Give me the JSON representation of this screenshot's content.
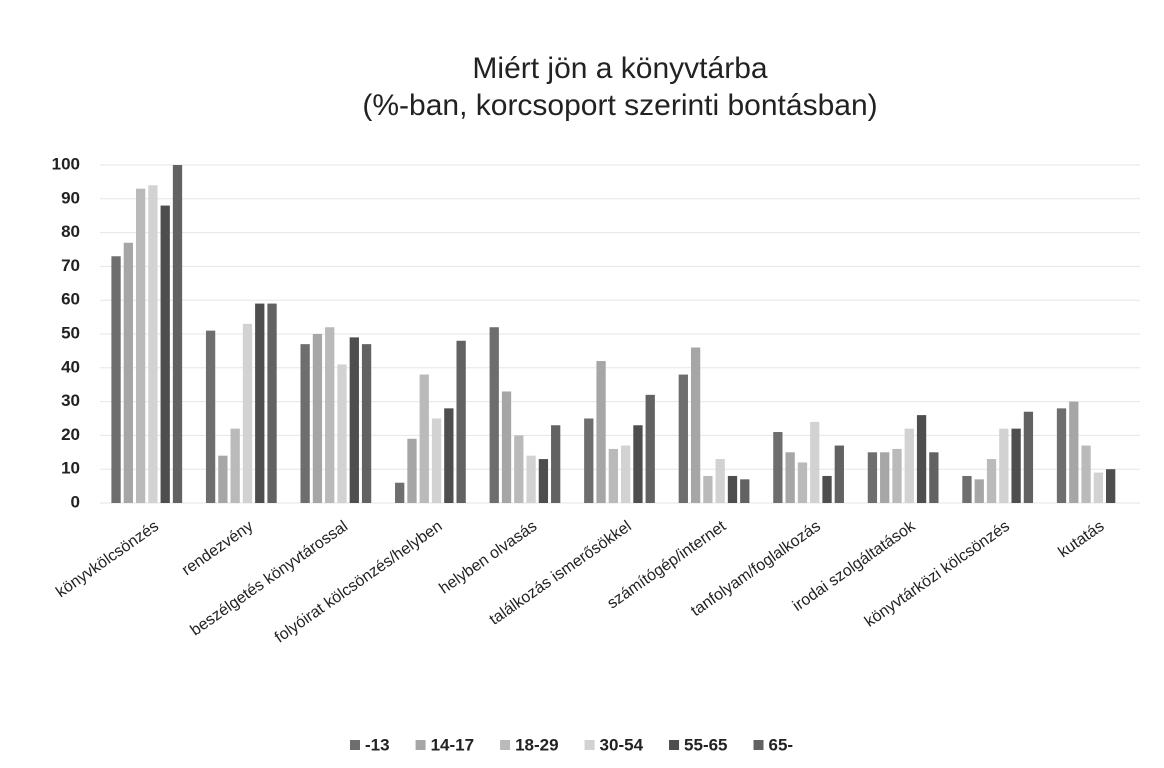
{
  "chart_data": {
    "type": "bar",
    "title": "Miért jön a könyvtárba",
    "subtitle": "(%-ban, korcsoport szerinti bontásban)",
    "categories": [
      "könyvkölcsönzés",
      "rendezvény",
      "beszélgetés könyvtárossal",
      "folyóirat kölcsönzés/helyben",
      "helyben olvasás",
      "találkozás ismerősökkel",
      "számítógép/internet",
      "tanfolyam/foglalkozás",
      "irodai szolgáltatások",
      "könyvtárközi kölcsönzés",
      "kutatás"
    ],
    "series": [
      {
        "name": "-13",
        "color": "#6e6e6e",
        "values": [
          73,
          51,
          47,
          6,
          52,
          25,
          38,
          21,
          15,
          8,
          28
        ]
      },
      {
        "name": "14-17",
        "color": "#a6a6a6",
        "values": [
          77,
          14,
          50,
          19,
          33,
          42,
          46,
          15,
          15,
          7,
          30
        ]
      },
      {
        "name": "18-29",
        "color": "#bababa",
        "values": [
          93,
          22,
          52,
          38,
          20,
          16,
          8,
          12,
          16,
          13,
          17
        ]
      },
      {
        "name": "30-54",
        "color": "#d2d2d2",
        "values": [
          94,
          53,
          41,
          25,
          14,
          17,
          13,
          24,
          22,
          22,
          9
        ]
      },
      {
        "name": "55-65",
        "color": "#4e4e4e",
        "values": [
          88,
          59,
          49,
          28,
          13,
          23,
          8,
          8,
          26,
          22,
          10
        ]
      },
      {
        "name": "65-",
        "color": "#626262",
        "values": [
          100,
          59,
          47,
          48,
          23,
          32,
          7,
          17,
          15,
          27,
          null
        ]
      }
    ],
    "ylim": [
      0,
      100
    ],
    "yticks": [
      0,
      10,
      20,
      30,
      40,
      50,
      60,
      70,
      80,
      90,
      100
    ],
    "grid": true
  }
}
